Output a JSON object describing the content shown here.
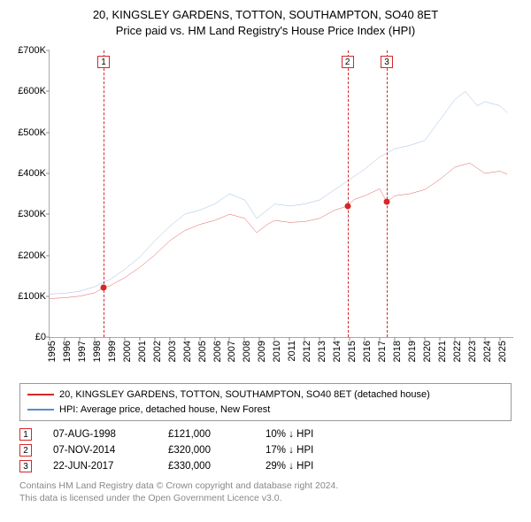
{
  "title": {
    "line1": "20, KINGSLEY GARDENS, TOTTON, SOUTHAMPTON, SO40 8ET",
    "line2": "Price paid vs. HM Land Registry's House Price Index (HPI)"
  },
  "chart": {
    "type": "line",
    "background_color": "#ffffff",
    "axis_color": "#aaaaaa",
    "ylim": [
      0,
      700000
    ],
    "yticks": [
      0,
      100000,
      200000,
      300000,
      400000,
      500000,
      600000,
      700000
    ],
    "ytick_labels": [
      "£0",
      "£100K",
      "£200K",
      "£300K",
      "£400K",
      "£500K",
      "£600K",
      "£700K"
    ],
    "xlim": [
      1995,
      2025.9
    ],
    "xticks": [
      1995,
      1996,
      1997,
      1998,
      1999,
      2000,
      2001,
      2002,
      2003,
      2004,
      2005,
      2006,
      2007,
      2008,
      2009,
      2010,
      2011,
      2012,
      2013,
      2014,
      2015,
      2016,
      2017,
      2018,
      2019,
      2020,
      2021,
      2022,
      2023,
      2024,
      2025
    ],
    "label_fontsize": 11,
    "series": [
      {
        "id": "property",
        "label": "20, KINGSLEY GARDENS, TOTTON, SOUTHAMPTON, SO40 8ET (detached house)",
        "color": "#d62728",
        "line_width": 1.5,
        "points": [
          [
            1995.0,
            94000
          ],
          [
            1996.0,
            96000
          ],
          [
            1997.0,
            100000
          ],
          [
            1998.0,
            108000
          ],
          [
            1998.6,
            121000
          ],
          [
            1999.0,
            125000
          ],
          [
            2000.0,
            145000
          ],
          [
            2001.0,
            170000
          ],
          [
            2002.0,
            200000
          ],
          [
            2003.0,
            235000
          ],
          [
            2004.0,
            260000
          ],
          [
            2005.0,
            275000
          ],
          [
            2006.0,
            285000
          ],
          [
            2007.0,
            300000
          ],
          [
            2008.0,
            290000
          ],
          [
            2008.8,
            255000
          ],
          [
            2009.5,
            275000
          ],
          [
            2010.0,
            285000
          ],
          [
            2011.0,
            280000
          ],
          [
            2012.0,
            282000
          ],
          [
            2013.0,
            290000
          ],
          [
            2014.0,
            310000
          ],
          [
            2014.85,
            320000
          ],
          [
            2015.3,
            336000
          ],
          [
            2016.0,
            345000
          ],
          [
            2017.0,
            362000
          ],
          [
            2017.47,
            330000
          ],
          [
            2018.0,
            345000
          ],
          [
            2019.0,
            350000
          ],
          [
            2020.0,
            360000
          ],
          [
            2021.0,
            385000
          ],
          [
            2022.0,
            415000
          ],
          [
            2023.0,
            425000
          ],
          [
            2024.0,
            400000
          ],
          [
            2025.0,
            405000
          ],
          [
            2025.5,
            398000
          ]
        ]
      },
      {
        "id": "hpi",
        "label": "HPI: Average price, detached house, New Forest",
        "color": "#5b8bc9",
        "line_width": 1.2,
        "points": [
          [
            1995.0,
            105000
          ],
          [
            1996.0,
            107000
          ],
          [
            1997.0,
            112000
          ],
          [
            1998.0,
            123000
          ],
          [
            1999.0,
            140000
          ],
          [
            2000.0,
            165000
          ],
          [
            2001.0,
            195000
          ],
          [
            2002.0,
            235000
          ],
          [
            2003.0,
            270000
          ],
          [
            2004.0,
            300000
          ],
          [
            2005.0,
            310000
          ],
          [
            2006.0,
            325000
          ],
          [
            2007.0,
            350000
          ],
          [
            2008.0,
            335000
          ],
          [
            2008.8,
            290000
          ],
          [
            2009.5,
            310000
          ],
          [
            2010.0,
            325000
          ],
          [
            2011.0,
            320000
          ],
          [
            2012.0,
            325000
          ],
          [
            2013.0,
            335000
          ],
          [
            2014.0,
            360000
          ],
          [
            2015.0,
            385000
          ],
          [
            2016.0,
            410000
          ],
          [
            2017.0,
            440000
          ],
          [
            2018.0,
            460000
          ],
          [
            2019.0,
            468000
          ],
          [
            2020.0,
            480000
          ],
          [
            2021.0,
            530000
          ],
          [
            2022.0,
            580000
          ],
          [
            2022.7,
            600000
          ],
          [
            2023.5,
            565000
          ],
          [
            2024.0,
            575000
          ],
          [
            2025.0,
            565000
          ],
          [
            2025.5,
            548000
          ]
        ]
      }
    ],
    "sale_markers": [
      {
        "n": "1",
        "x": 1998.6,
        "y": 121000,
        "color": "#d62728"
      },
      {
        "n": "2",
        "x": 2014.85,
        "y": 320000,
        "color": "#d62728"
      },
      {
        "n": "3",
        "x": 2017.47,
        "y": 330000,
        "color": "#d62728"
      }
    ],
    "marker_box_top_offset": 6
  },
  "legend": {
    "border_color": "#999999",
    "items": [
      {
        "color": "#d62728",
        "label": "20, KINGSLEY GARDENS, TOTTON, SOUTHAMPTON, SO40 8ET (detached house)"
      },
      {
        "color": "#5b8bc9",
        "label": "HPI: Average price, detached house, New Forest"
      }
    ]
  },
  "events": [
    {
      "n": "1",
      "border": "#d62728",
      "date": "07-AUG-1998",
      "price": "£121,000",
      "change": "10% ↓ HPI"
    },
    {
      "n": "2",
      "border": "#d62728",
      "date": "07-NOV-2014",
      "price": "£320,000",
      "change": "17% ↓ HPI"
    },
    {
      "n": "3",
      "border": "#d62728",
      "date": "22-JUN-2017",
      "price": "£330,000",
      "change": "29% ↓ HPI"
    }
  ],
  "footer": {
    "line1": "Contains HM Land Registry data © Crown copyright and database right 2024.",
    "line2": "This data is licensed under the Open Government Licence v3.0."
  }
}
